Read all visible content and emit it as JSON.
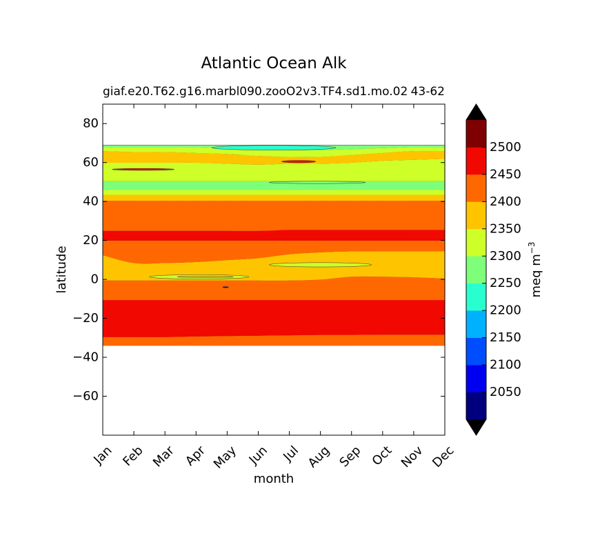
{
  "chart_data": {
    "type": "heatmap",
    "title": "Atlantic Ocean Alk",
    "subtitle_left": "giaf.e20.T62.g16.marbl090.zooO2v3.TF4.sd1.mo.02",
    "subtitle_right": "43-62",
    "xlabel": "month",
    "ylabel": "latitude",
    "x_categories": [
      "Jan",
      "Feb",
      "Mar",
      "Apr",
      "May",
      "Jun",
      "Jul",
      "Aug",
      "Sep",
      "Oct",
      "Nov",
      "Dec"
    ],
    "ylim": [
      -80,
      90
    ],
    "y_ticks": [
      80,
      60,
      40,
      20,
      0,
      -20,
      -40,
      -60
    ],
    "y_tick_labels": [
      "80",
      "60",
      "40",
      "20",
      "0",
      "−20",
      "−40",
      "−60"
    ],
    "data_lat_range": [
      -34,
      69
    ],
    "grid": false,
    "colorbar": {
      "label_base": "meq m",
      "label_exp": "−3",
      "levels": [
        2000,
        2050,
        2100,
        2150,
        2200,
        2250,
        2300,
        2350,
        2400,
        2450,
        2500,
        2550
      ],
      "tick_values": [
        2050,
        2100,
        2150,
        2200,
        2250,
        2300,
        2350,
        2400,
        2450,
        2500
      ],
      "colors": [
        "#00007f",
        "#0000f1",
        "#004dff",
        "#00b1ff",
        "#29ffce",
        "#7dff7a",
        "#ceff29",
        "#ffc400",
        "#ff6800",
        "#f10800",
        "#7f0000"
      ],
      "extend_colors": {
        "under": "#000000",
        "over": "#000000"
      }
    },
    "bands": [
      {
        "level": 2400,
        "lat_top": [
          -29.5,
          -29.5,
          -29.5,
          -29.2,
          -29,
          -28.8,
          -28.6,
          -28.4,
          -28.4,
          -28.3,
          -28.3,
          -28.3
        ],
        "lat_bottom": -34
      },
      {
        "level": 2450,
        "lat_top": [
          -10.5,
          -10.5,
          -10.5,
          -10.5,
          -10.5,
          -10.5,
          -10.5,
          -10.5,
          -10.5,
          -10.5,
          -10.5,
          -10.5
        ],
        "lat_bottom": [
          -29.5,
          -29.5,
          -29.5,
          -29.2,
          -29,
          -28.8,
          -28.6,
          -28.4,
          -28.4,
          -28.3,
          -28.3,
          -28.3
        ]
      },
      {
        "level": 2400,
        "lat_top": [
          -0.5,
          -0.5,
          -0.5,
          -0.5,
          -0.5,
          -0.5,
          -0.5,
          0,
          1.5,
          1.5,
          1.2,
          0.5
        ],
        "lat_bottom": -10.5
      },
      {
        "level": 2350,
        "lat_top": [
          12.5,
          8.5,
          8.5,
          9,
          10,
          11,
          13,
          14,
          14.5,
          14.5,
          14.5,
          14.5
        ],
        "lat_bottom": [
          -0.5,
          -0.5,
          -0.5,
          -0.5,
          -0.5,
          -0.5,
          -0.5,
          0,
          1.5,
          1.5,
          1.2,
          0.5
        ]
      },
      {
        "level": 2400,
        "lat_top": [
          20,
          20,
          20,
          20,
          20,
          20,
          20,
          20,
          20,
          20,
          20,
          20
        ],
        "lat_bottom": [
          12.5,
          8.5,
          8.5,
          9,
          10,
          11,
          13,
          14,
          14.5,
          14.5,
          14.5,
          14.5
        ]
      },
      {
        "level": 2450,
        "lat_top": [
          25,
          25,
          25,
          25,
          25,
          25,
          25.5,
          25.5,
          25.5,
          25.5,
          25.5,
          25.5
        ],
        "lat_bottom": 20
      },
      {
        "level": 2400,
        "lat_top": [
          40.5,
          40.5,
          40.5,
          40.5,
          40.5,
          40.5,
          40.5,
          40.5,
          40.5,
          40.5,
          40.5,
          40.5
        ],
        "lat_bottom": [
          25,
          25,
          25,
          25,
          25,
          25,
          25.5,
          25.5,
          25.5,
          25.5,
          25.5,
          25.5
        ]
      },
      {
        "level": 2350,
        "lat_top": 43.5,
        "lat_bottom": 40.5
      },
      {
        "level": 2300,
        "lat_top": 46,
        "lat_bottom": 43.5
      },
      {
        "level": 2250,
        "lat_top": 50.5,
        "lat_bottom": 46
      },
      {
        "level": 2300,
        "lat_top": [
          60,
          60,
          60,
          60,
          59.5,
          59,
          59.5,
          59.5,
          60,
          61,
          61.5,
          62
        ],
        "lat_bottom": 50.5
      },
      {
        "level": 2350,
        "lat_top": [
          66,
          65.5,
          65.5,
          65,
          64.5,
          63.5,
          63,
          63,
          64,
          65,
          66,
          66
        ],
        "lat_bottom": [
          60,
          60,
          60,
          60,
          59.5,
          59,
          59.5,
          59.5,
          60,
          61,
          61.5,
          62
        ]
      },
      {
        "level": 2300,
        "lat_top": [
          68,
          68,
          68,
          68,
          67.5,
          67,
          66.5,
          66.5,
          67,
          67.5,
          68,
          68
        ],
        "lat_bottom": [
          66,
          65.5,
          65.5,
          65,
          64.5,
          63.5,
          63,
          63,
          64,
          65,
          66,
          66
        ]
      },
      {
        "level": 2250,
        "lat_top": 69,
        "lat_bottom": [
          68,
          68,
          68,
          68,
          67.5,
          67,
          66.5,
          66.5,
          67,
          67.5,
          68,
          68
        ]
      }
    ],
    "patches": [
      {
        "level": 2450,
        "x_center": 6.3,
        "x_halfwidth": 0.55,
        "lat_center": 60.5,
        "lat_halfwidth": 0.6
      },
      {
        "level": 2450,
        "x_center": 1.3,
        "x_halfwidth": 1.0,
        "lat_center": 56.5,
        "lat_halfwidth": 0.5
      },
      {
        "level": 2250,
        "x_center": 6.9,
        "x_halfwidth": 1.55,
        "lat_center": 49.8,
        "lat_halfwidth": 0.6
      },
      {
        "level": 2200,
        "x_center": 5.5,
        "x_halfwidth": 2.0,
        "lat_center": 67.6,
        "lat_halfwidth": 1.2
      },
      {
        "level": 2300,
        "x_center": 7.0,
        "x_halfwidth": 1.65,
        "lat_center": 7.5,
        "lat_halfwidth": 1.1
      },
      {
        "level": 2300,
        "x_center": 3.1,
        "x_halfwidth": 1.6,
        "lat_center": 1.3,
        "lat_halfwidth": 1.1
      },
      {
        "level": 2350,
        "x_center": 3.3,
        "x_halfwidth": 0.9,
        "lat_center": 1.3,
        "lat_halfwidth": 0.35
      },
      {
        "level": 2050,
        "x_center": 3.95,
        "x_halfwidth": 0.1,
        "lat_center": -4,
        "lat_halfwidth": 0.3
      }
    ]
  }
}
